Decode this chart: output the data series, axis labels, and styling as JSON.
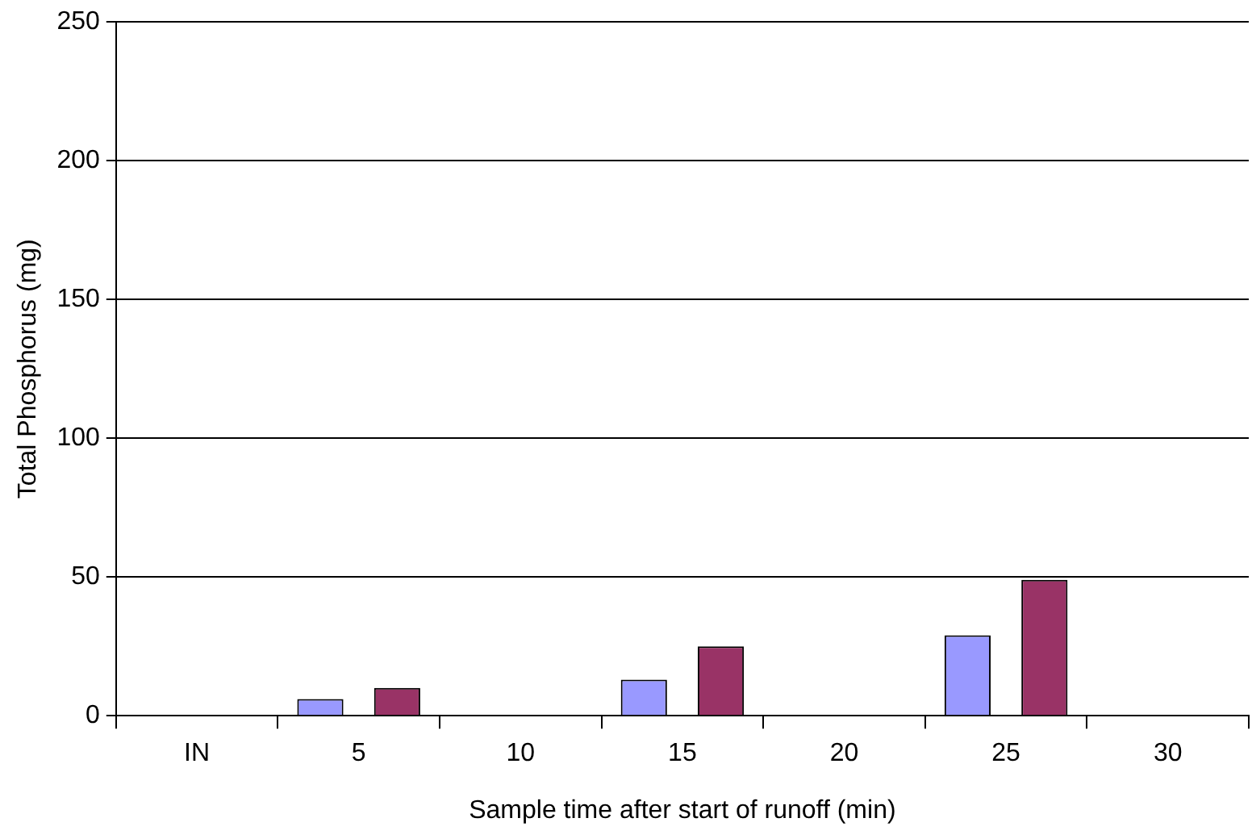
{
  "chart_data": {
    "type": "bar",
    "xlabel": "Sample time after start of runoff (min)",
    "ylabel": "Total Phosphorus (mg)",
    "categories": [
      "IN",
      "5",
      "10",
      "15",
      "20",
      "25",
      "30"
    ],
    "series": [
      {
        "color": "#9999ff",
        "values": [
          null,
          6,
          null,
          13,
          null,
          29,
          null
        ]
      },
      {
        "color": "#993366",
        "values": [
          null,
          10,
          null,
          25,
          null,
          49,
          null
        ]
      }
    ],
    "ylim": [
      0,
      250
    ],
    "yticks": [
      0,
      50,
      100,
      150,
      200,
      250
    ],
    "grid": "y",
    "legend": false
  }
}
